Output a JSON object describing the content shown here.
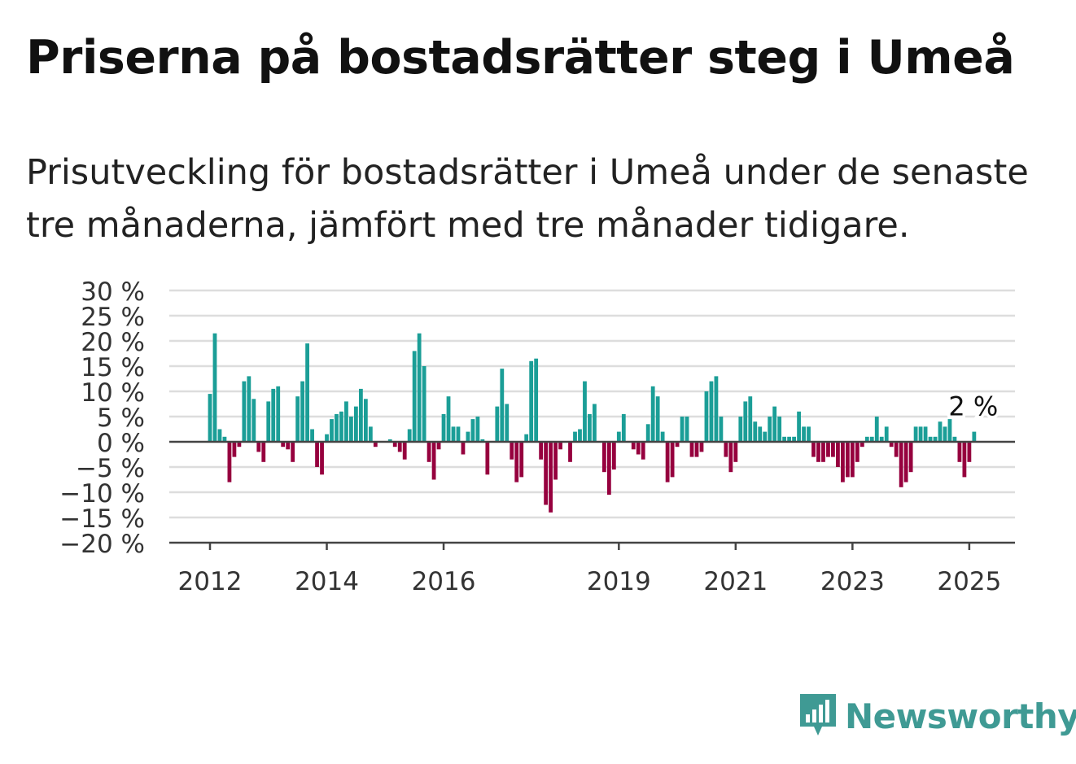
{
  "title": "Priserna på bostadsrätter steg i Umeå",
  "subtitle": "Prisutveckling för bostadsrätter i Umeå under de senaste tre månaderna, jämfört med tre månader tidigare.",
  "brand": {
    "name": "Newsworthy",
    "icon": "newsworthy-logo-icon",
    "color": "#3f9a94"
  },
  "chart_data": {
    "type": "bar",
    "title": "",
    "xlabel": "",
    "ylabel": "",
    "ylim": [
      -20,
      30
    ],
    "y_ticks": [
      30,
      25,
      20,
      15,
      10,
      5,
      0,
      -5,
      -10,
      -15,
      -20
    ],
    "y_tick_labels": [
      "30 %",
      "25 %",
      "20 %",
      "15 %",
      "10 %",
      "5 %",
      "0 %",
      "−5 %",
      "−10 %",
      "−15 %",
      "−20 %"
    ],
    "x_ticks": [
      {
        "label": "2012",
        "index": 0
      },
      {
        "label": "2014",
        "index": 24
      },
      {
        "label": "2016",
        "index": 48
      },
      {
        "label": "2019",
        "index": 84
      },
      {
        "label": "2021",
        "index": 108
      },
      {
        "label": "2023",
        "index": 132
      },
      {
        "label": "2025",
        "index": 156
      }
    ],
    "first_period": "2012-01",
    "positive_color": "#1b9e97",
    "negative_color": "#96003e",
    "grid": true,
    "annotation": {
      "label": "2 %",
      "index": 157
    },
    "values": [
      9.5,
      21.5,
      2.5,
      1,
      -8,
      -3,
      -1,
      12,
      13,
      8.5,
      -2,
      -4,
      8,
      10.5,
      11,
      -1,
      -1.5,
      -4,
      9,
      12,
      19.5,
      2.5,
      -5,
      -6.5,
      1.5,
      4.5,
      5.5,
      6,
      8,
      5,
      7,
      10.5,
      8.5,
      3,
      -1,
      0,
      0,
      0.5,
      -1,
      -2,
      -3.5,
      2.5,
      18,
      21.5,
      15,
      -4,
      -7.5,
      -1.5,
      5.5,
      9,
      3,
      3,
      -2.5,
      2,
      4.5,
      5,
      0.5,
      -6.5,
      0,
      7,
      14.5,
      7.5,
      -3.5,
      -8,
      -7,
      1.5,
      16,
      16.5,
      -3.5,
      -12.5,
      -14,
      -7.5,
      -1.5,
      0,
      -4,
      2,
      2.5,
      12,
      5.5,
      7.5,
      0,
      -6,
      -10.5,
      -5.5,
      2,
      5.5,
      0,
      -1.5,
      -2.5,
      -3.5,
      3.5,
      11,
      9,
      2,
      -8,
      -7,
      -1,
      5,
      5,
      -3,
      -3,
      -2,
      10,
      12,
      13,
      5,
      -3,
      -6,
      -4,
      5,
      8,
      9,
      4,
      3,
      2,
      5,
      7,
      5,
      1,
      1,
      1,
      6,
      3,
      3,
      -3,
      -4,
      -4,
      -3,
      -3,
      -5,
      -8,
      -7,
      -7,
      -4,
      -1,
      1,
      1,
      5,
      1,
      3,
      -1,
      -3,
      -9,
      -8,
      -6,
      3,
      3,
      3,
      1,
      1,
      4,
      3,
      4.5,
      1,
      -4,
      -7,
      -4,
      2
    ]
  }
}
